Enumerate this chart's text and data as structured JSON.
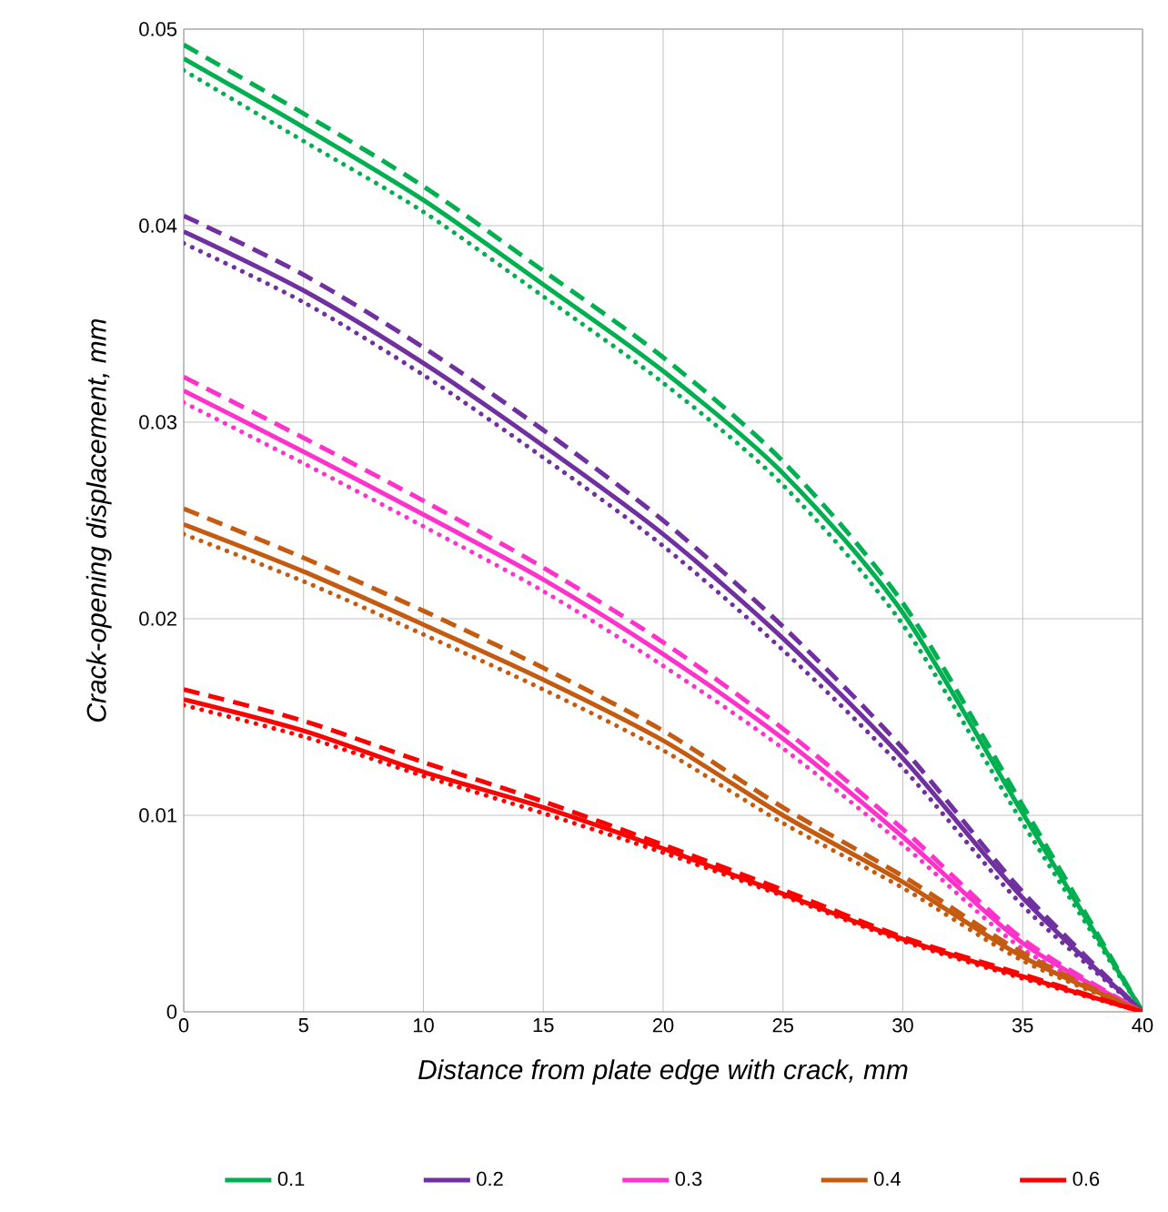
{
  "chart_data": {
    "type": "line",
    "xlabel": "Distance from plate edge with crack, mm",
    "ylabel": "Crack-opening displacement, mm",
    "x": [
      0,
      5,
      10,
      15,
      20,
      25,
      30,
      35,
      40
    ],
    "xlim": [
      0,
      40
    ],
    "xticks": [
      0,
      5,
      10,
      15,
      20,
      25,
      30,
      35,
      40
    ],
    "ylim": [
      0,
      0.05
    ],
    "yticks": [
      0,
      0.01,
      0.02,
      0.03,
      0.04,
      0.05
    ],
    "grid": true,
    "legend": "bottom",
    "marker": "none",
    "series": [
      {
        "name": "0.1",
        "color": "#00b050",
        "line_style": "solid",
        "values": [
          0.0485,
          0.045,
          0.0413,
          0.037,
          0.0326,
          0.0274,
          0.0203,
          0.0101,
          0
        ]
      },
      {
        "color": "#00b050",
        "line_style": "dashed",
        "values": [
          0.0492,
          0.0457,
          0.042,
          0.0377,
          0.0333,
          0.028,
          0.0208,
          0.0105,
          0
        ]
      },
      {
        "color": "#00b050",
        "line_style": "dotted",
        "values": [
          0.0479,
          0.0443,
          0.0407,
          0.0364,
          0.032,
          0.0268,
          0.0197,
          0.0096,
          0
        ]
      },
      {
        "name": "0.2",
        "color": "#7030a0",
        "line_style": "solid",
        "values": [
          0.0397,
          0.0367,
          0.033,
          0.0288,
          0.0243,
          0.019,
          0.0129,
          0.0058,
          0
        ]
      },
      {
        "color": "#7030a0",
        "line_style": "dashed",
        "values": [
          0.0405,
          0.0375,
          0.0338,
          0.0296,
          0.025,
          0.0196,
          0.0134,
          0.0061,
          0
        ]
      },
      {
        "color": "#7030a0",
        "line_style": "dotted",
        "values": [
          0.0391,
          0.0361,
          0.0324,
          0.0282,
          0.0237,
          0.0184,
          0.0124,
          0.0054,
          0
        ]
      },
      {
        "name": "0.3",
        "color": "#ff33cc",
        "line_style": "solid",
        "values": [
          0.0316,
          0.0285,
          0.0253,
          0.022,
          0.0182,
          0.0139,
          0.0089,
          0.0035,
          0
        ]
      },
      {
        "color": "#ff33cc",
        "line_style": "dashed",
        "values": [
          0.0323,
          0.0292,
          0.026,
          0.0226,
          0.0188,
          0.0144,
          0.0093,
          0.0037,
          0
        ]
      },
      {
        "color": "#ff33cc",
        "line_style": "dotted",
        "values": [
          0.031,
          0.0279,
          0.0247,
          0.0214,
          0.0176,
          0.0134,
          0.0085,
          0.0032,
          0
        ]
      },
      {
        "name": "0.4",
        "color": "#c55a11",
        "line_style": "solid",
        "values": [
          0.0248,
          0.0224,
          0.0197,
          0.0169,
          0.0138,
          0.01,
          0.0066,
          0.0028,
          0
        ]
      },
      {
        "color": "#c55a11",
        "line_style": "dashed",
        "values": [
          0.0256,
          0.0231,
          0.0204,
          0.0175,
          0.0143,
          0.0104,
          0.0069,
          0.003,
          0
        ]
      },
      {
        "color": "#c55a11",
        "line_style": "dotted",
        "values": [
          0.0243,
          0.0219,
          0.0192,
          0.0164,
          0.0133,
          0.0096,
          0.0063,
          0.0026,
          0
        ]
      },
      {
        "name": "0.6",
        "color": "#ff0000",
        "line_style": "solid",
        "values": [
          0.0159,
          0.0143,
          0.0122,
          0.0104,
          0.0083,
          0.006,
          0.0037,
          0.0018,
          0
        ]
      },
      {
        "color": "#ff0000",
        "line_style": "dashed",
        "values": [
          0.0164,
          0.0148,
          0.0127,
          0.0107,
          0.0085,
          0.0062,
          0.0038,
          0.0019,
          0
        ]
      },
      {
        "color": "#ff0000",
        "line_style": "dotted",
        "values": [
          0.0156,
          0.014,
          0.012,
          0.0101,
          0.0081,
          0.0059,
          0.0036,
          0.0017,
          0
        ]
      }
    ]
  }
}
